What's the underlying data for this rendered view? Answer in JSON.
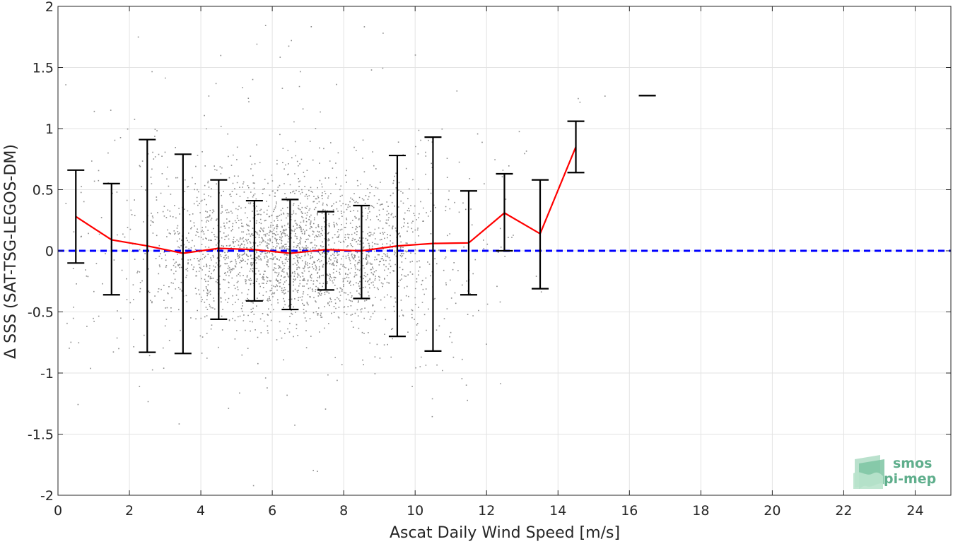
{
  "chart_data": {
    "type": "scatter",
    "title": "",
    "xlabel": "Ascat Daily Wind Speed [m/s]",
    "ylabel": "Δ SSS (SAT-TSG-LEGOS-DM)",
    "xlim": [
      0,
      25
    ],
    "ylim": [
      -2,
      2
    ],
    "x_ticks": [
      0,
      2,
      4,
      6,
      8,
      10,
      12,
      14,
      16,
      18,
      20,
      22,
      24
    ],
    "y_ticks": [
      -2,
      -1.5,
      -1,
      -0.5,
      0,
      0.5,
      1,
      1.5,
      2
    ],
    "x_tick_labels": [
      "0",
      "2",
      "4",
      "6",
      "8",
      "10",
      "12",
      "14",
      "16",
      "18",
      "20",
      "22",
      "24"
    ],
    "y_tick_labels": [
      "-2",
      "-1.5",
      "-1",
      "-0.5",
      "0",
      "0.5",
      "1",
      "1.5",
      "2"
    ],
    "grid": true,
    "scatter_color": "#8c8c8c",
    "scatter_description": "dense cloud of individual matchups, concentrated between 3 and 10 m/s and roughly -0.6 to 0.6",
    "binned_mean": {
      "color": "#ff0000",
      "x": [
        0.5,
        1.5,
        2.5,
        3.5,
        4.5,
        5.5,
        6.5,
        7.5,
        8.5,
        9.5,
        10.5,
        11.5,
        12.5,
        13.5,
        14.5
      ],
      "y": [
        0.28,
        0.09,
        0.04,
        -0.02,
        0.02,
        0.01,
        -0.02,
        0.01,
        0.0,
        0.04,
        0.06,
        0.065,
        0.31,
        0.14,
        0.85
      ]
    },
    "error_bars": {
      "color": "#000000",
      "x": [
        0.5,
        1.5,
        2.5,
        3.5,
        4.5,
        5.5,
        6.5,
        7.5,
        8.5,
        9.5,
        10.5,
        11.5,
        12.5,
        13.5,
        14.5,
        16.5
      ],
      "lower": [
        -0.1,
        -0.36,
        -0.83,
        -0.84,
        -0.56,
        -0.41,
        -0.48,
        -0.32,
        -0.39,
        -0.7,
        -0.82,
        -0.36,
        0.0,
        -0.31,
        0.64,
        1.27
      ],
      "upper": [
        0.66,
        0.55,
        0.91,
        0.79,
        0.58,
        0.41,
        0.42,
        0.32,
        0.37,
        0.78,
        0.93,
        0.49,
        0.63,
        0.58,
        1.06,
        1.27
      ]
    },
    "reference_line": {
      "y": 0,
      "color": "#0000ff",
      "style": "dashed"
    }
  },
  "logo": {
    "line1": "smos",
    "line2": "pi-mep",
    "color": "#5fae8c"
  }
}
